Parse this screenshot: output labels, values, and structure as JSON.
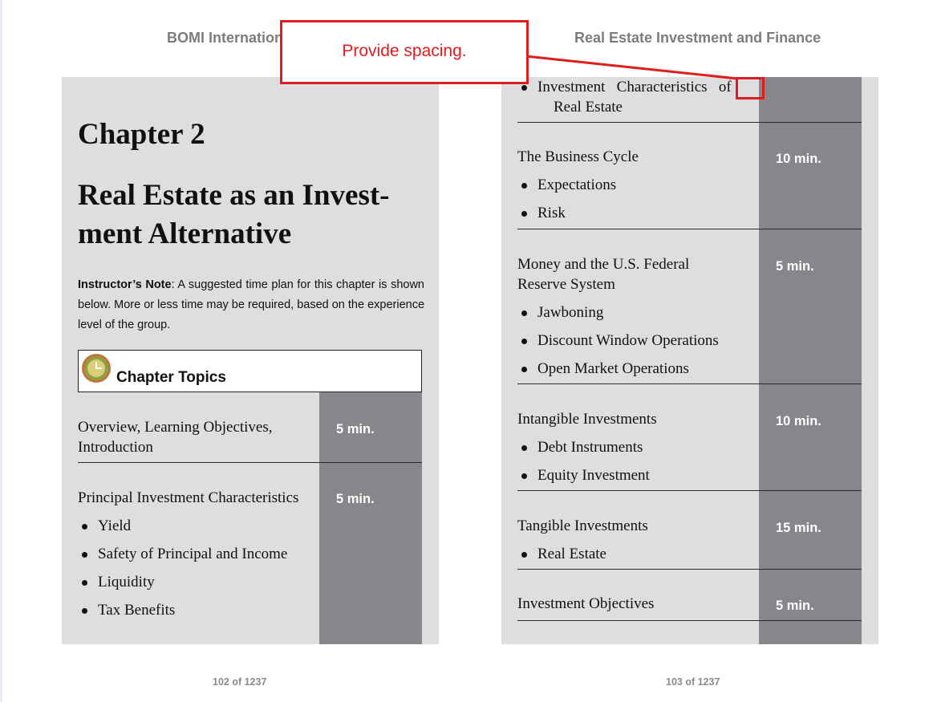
{
  "header": {
    "left_title": "BOMI International",
    "right_title": "Real Estate Investment and Finance"
  },
  "left_page": {
    "chapter": "Chapter 2",
    "title_line1": "Real Estate as an Invest-",
    "title_line2": "ment Alternative",
    "note_label": "Instructor’s Note",
    "note_text": ": A suggested time plan for this chapter is shown below. More or less time may be required, based on the experience level of the group.",
    "topics_label": "Chapter Topics",
    "rows": [
      {
        "title": "Overview, Learning Objectives, Introduction",
        "time": "5 min.",
        "bullets": []
      },
      {
        "title": "Principal Investment Characteristics",
        "time": "5 min.",
        "bullets": [
          "Yield",
          "Safety of Principal and Income",
          "Liquidity",
          "Tax Benefits"
        ]
      }
    ],
    "footer": "102 of 1237"
  },
  "right_page": {
    "continued_bullet_line1": "Investment   Characteristics   of",
    "continued_bullet_line2": "Real Estate",
    "rows": [
      {
        "title": "The Business Cycle",
        "time": "10 min.",
        "bullets": [
          "Expectations",
          "Risk"
        ]
      },
      {
        "title_line1": "Money and the U.S. Federal",
        "title_line2": "Reserve System",
        "time": "5 min.",
        "bullets": [
          "Jawboning",
          "Discount Window Operations",
          "Open Market Operations"
        ]
      },
      {
        "title": "Intangible Investments",
        "time": "10 min.",
        "bullets": [
          "Debt Instruments",
          "Equity Investment"
        ]
      },
      {
        "title": "Tangible Investments",
        "time": "15 min.",
        "bullets": [
          "Real Estate"
        ]
      },
      {
        "title": "Investment Objectives",
        "time": "5 min.",
        "bullets": []
      }
    ],
    "footer": "103 of 1237"
  },
  "annotation": {
    "text": "Provide spacing.",
    "color": "#e11c1c"
  },
  "colors": {
    "page_bg": "#dedee0",
    "time_column": "#87878b",
    "header_text": "#7d7d7d"
  }
}
